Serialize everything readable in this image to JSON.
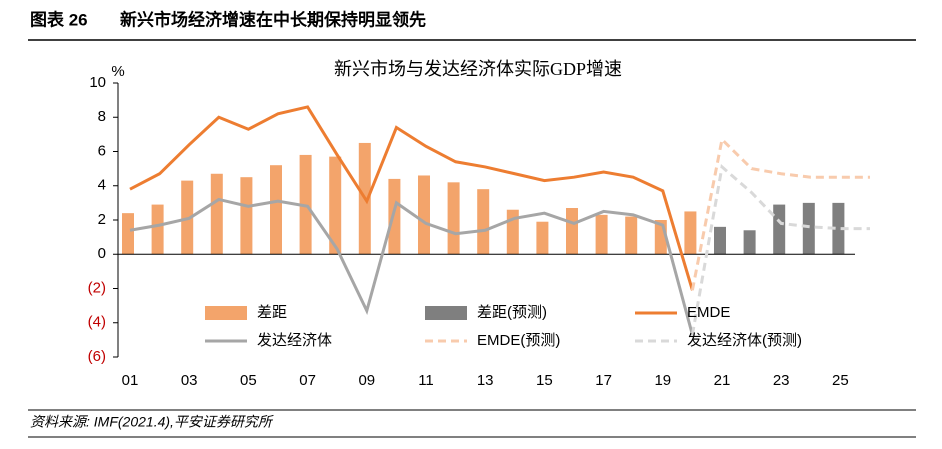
{
  "header": {
    "figure_no": "图表 26",
    "title": "新兴市场经济增速在中长期保持明显领先"
  },
  "chart_data": {
    "type": "combo",
    "title": "新兴市场与发达经济体实际GDP增速",
    "y_unit": "%",
    "categories": [
      "01",
      null,
      "03",
      null,
      "05",
      null,
      "07",
      null,
      "09",
      null,
      "11",
      null,
      "13",
      null,
      "15",
      null,
      "17",
      null,
      "19",
      null,
      "21",
      null,
      "23",
      null,
      "25",
      null
    ],
    "ylim": [
      -6,
      10
    ],
    "yticks": [
      {
        "value": -6,
        "label": "(6)"
      },
      {
        "value": -4,
        "label": "(4)"
      },
      {
        "value": -2,
        "label": "(2)"
      },
      0,
      2,
      4,
      6,
      8,
      10
    ],
    "negative_tick_color": "#c00000",
    "series": [
      {
        "name": "差距",
        "kind": "bar",
        "color": "#f3a46b",
        "dashed": false,
        "values": [
          2.4,
          2.9,
          4.3,
          4.7,
          4.5,
          5.2,
          5.8,
          5.7,
          6.5,
          4.4,
          4.6,
          4.2,
          3.8,
          2.6,
          1.9,
          2.7,
          2.3,
          2.2,
          2.0,
          2.5,
          null,
          null,
          null,
          null,
          null,
          null
        ]
      },
      {
        "name": "差距(预测)",
        "kind": "bar",
        "color": "#7f7f7f",
        "dashed": false,
        "values": [
          null,
          null,
          null,
          null,
          null,
          null,
          null,
          null,
          null,
          null,
          null,
          null,
          null,
          null,
          null,
          null,
          null,
          null,
          null,
          null,
          1.6,
          1.4,
          2.9,
          3.0,
          3.0,
          null
        ]
      },
      {
        "name": "EMDE",
        "kind": "line",
        "color": "#ed7d31",
        "dashed": false,
        "values": [
          3.8,
          4.7,
          6.4,
          8.0,
          7.3,
          8.2,
          8.6,
          5.8,
          3.1,
          7.4,
          6.3,
          5.4,
          5.1,
          4.7,
          4.3,
          4.5,
          4.8,
          4.5,
          3.7,
          -2.1,
          null,
          null,
          null,
          null,
          null,
          null
        ]
      },
      {
        "name": "发达经济体",
        "kind": "line",
        "color": "#a6a6a6",
        "dashed": false,
        "values": [
          1.4,
          1.7,
          2.1,
          3.2,
          2.8,
          3.1,
          2.8,
          0.3,
          -3.3,
          3.0,
          1.8,
          1.2,
          1.4,
          2.1,
          2.4,
          1.8,
          2.5,
          2.3,
          1.7,
          -4.7,
          null,
          null,
          null,
          null,
          null,
          null
        ]
      },
      {
        "name": "EMDE(预测)",
        "kind": "line",
        "color": "#f8cbad",
        "dashed": true,
        "values": [
          null,
          null,
          null,
          null,
          null,
          null,
          null,
          null,
          null,
          null,
          null,
          null,
          null,
          null,
          null,
          null,
          null,
          null,
          null,
          -2.1,
          6.7,
          5.0,
          4.7,
          4.5,
          4.5,
          4.5
        ]
      },
      {
        "name": "发达经济体(预测)",
        "kind": "line",
        "color": "#d9d9d9",
        "dashed": true,
        "values": [
          null,
          null,
          null,
          null,
          null,
          null,
          null,
          null,
          null,
          null,
          null,
          null,
          null,
          null,
          null,
          null,
          null,
          null,
          null,
          -4.7,
          5.1,
          3.6,
          1.8,
          1.6,
          1.5,
          1.5
        ]
      }
    ]
  },
  "source": "资料来源: IMF(2021.4),平安证券研究所"
}
